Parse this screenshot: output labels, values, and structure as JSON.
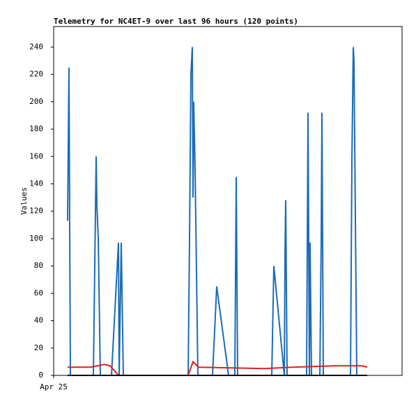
{
  "chart_data": {
    "type": "line",
    "title": "Telemetry for NC4ET-9 over last 96 hours (120 points)",
    "y_label": "Values",
    "xlim": [
      0,
      100
    ],
    "xticks": [
      {
        "value": 0,
        "label": "Apr 25"
      }
    ],
    "ylim": [
      0,
      255
    ],
    "yticks": [
      0,
      20,
      40,
      60,
      80,
      100,
      120,
      140,
      160,
      180,
      200,
      220,
      240
    ],
    "series": [
      {
        "color": "#1a6bb8",
        "x": [
          4,
          4.4,
          4.8,
          11.4,
          12.2,
          12.4,
          12.8,
          13.4,
          16.6,
          18.6,
          18.8,
          19.4,
          20,
          38.6,
          39,
          39.4,
          39.8,
          40,
          40.2,
          40.6,
          41.4,
          45.6,
          46.8,
          50.2,
          52,
          52.2,
          52.4,
          52.8,
          62.6,
          63.2,
          66.2,
          66.4,
          66.6,
          67,
          72.6,
          73,
          73.4,
          73.6,
          74,
          76.4,
          76.8,
          77,
          77.4,
          85.2,
          85.6,
          86,
          86.2,
          87,
          90
        ],
        "values": [
          113,
          225,
          0,
          0,
          160,
          125,
          100,
          0,
          0,
          97,
          0,
          97,
          0,
          0,
          100,
          220,
          240,
          130,
          200,
          150,
          0,
          0,
          65,
          0,
          0,
          72,
          145,
          0,
          0,
          80,
          0,
          90,
          128,
          0,
          0,
          192,
          0,
          97,
          0,
          0,
          100,
          192,
          0,
          0,
          157,
          240,
          230,
          0,
          0
        ]
      },
      {
        "color": "#e02020",
        "x": [
          4,
          10.6,
          12.6,
          14.6,
          16.2,
          17.6,
          18.6,
          38.6,
          40,
          41.6,
          60.6,
          68.6,
          80.6,
          88.6,
          90
        ],
        "values": [
          6,
          6,
          7,
          8,
          7,
          3,
          0,
          0,
          10,
          6,
          5,
          6,
          7,
          7,
          6
        ]
      },
      {
        "color": "#000000",
        "x": [
          4,
          90
        ],
        "values": [
          0,
          0
        ]
      }
    ]
  }
}
